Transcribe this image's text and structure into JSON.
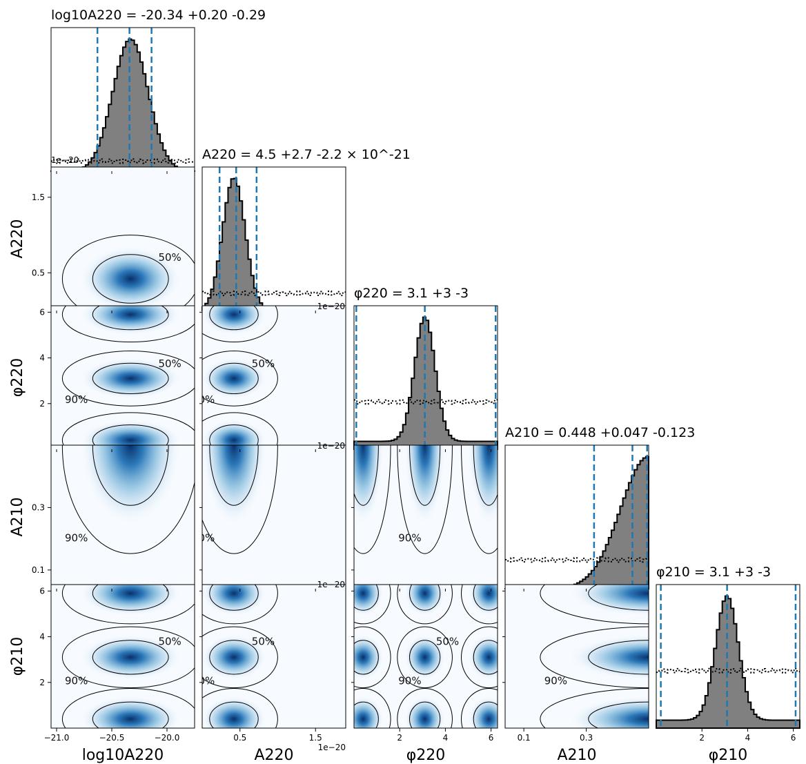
{
  "chart_data": {
    "type": "corner",
    "colors": {
      "hist_fill": "#808080",
      "hist_edge": "#000000",
      "quantile_line": "#1f77b4",
      "density": "Blues",
      "contour": "#000000"
    },
    "params": [
      {
        "key": "log10A220",
        "label_html": "log<tspan font-size='14' dy='5'>10</tspan><tspan font-style='italic' dy='-5'>A</tspan><tspan font-size='14' dy='5'>220</tspan>",
        "label_text": "log10A220",
        "title": {
          "text": "log10A220 = -20.34 +0.20 -0.29",
          "value": -20.34,
          "plus": 0.2,
          "minus": 0.29
        },
        "range": [
          -21.05,
          -19.75
        ],
        "ticks": [
          -21.0,
          -20.5,
          -20.0
        ],
        "tick_labels": [
          "−21.0",
          "−20.5",
          "−20.0"
        ],
        "offset_text": "",
        "quantiles": [
          -20.63,
          -20.34,
          -20.14
        ],
        "hist_peak": {
          "center": -20.33,
          "sigma": 0.16
        },
        "prior_level": 0.07
      },
      {
        "key": "A220",
        "label_text": "A220",
        "title": {
          "text": "A220 = 4.5 +2.7 -2.2 × 10^-21",
          "value": 4.5,
          "plus": 2.7,
          "minus": 2.2,
          "exponent": -21
        },
        "range": [
          0.0,
          1.9
        ],
        "ticks": [
          0.5,
          1.5
        ],
        "tick_labels": [
          "0.5",
          "1.5"
        ],
        "offset_text": "1e−20",
        "quantiles": [
          0.23,
          0.45,
          0.72
        ],
        "hist_peak": {
          "center": 0.42,
          "sigma": 0.15
        },
        "prior_level": 0.12
      },
      {
        "key": "phi220",
        "label_text": "φ220",
        "title": {
          "text": "φ220 = 3.1 +3 -3",
          "value": 3.1,
          "plus": 3,
          "minus": 3
        },
        "range": [
          0.0,
          6.283
        ],
        "ticks": [
          2,
          4,
          6
        ],
        "tick_labels": [
          "2",
          "4",
          "6"
        ],
        "offset_text": "",
        "quantiles": [
          0.1,
          3.1,
          6.2
        ],
        "hist_peak": {
          "center": 3.1,
          "sigma": 0.45,
          "periodic": true
        },
        "prior_level": 0.33
      },
      {
        "key": "A210",
        "label_text": "A210",
        "title": {
          "text": "A210 = 0.448 +0.047 -0.123",
          "value": 0.448,
          "plus": 0.047,
          "minus": 0.123
        },
        "range": [
          0.04,
          0.5
        ],
        "ticks": [
          0.1,
          0.3
        ],
        "tick_labels": [
          "0.1",
          "0.3"
        ],
        "offset_text": "",
        "quantiles": [
          0.325,
          0.448,
          0.495
        ],
        "hist_peak": {
          "center": 0.5,
          "sigma": 0.09,
          "edge": true
        },
        "prior_level": 0.2
      },
      {
        "key": "phi210",
        "label_text": "φ210",
        "title": {
          "text": "φ210 = 3.1 +3 -3",
          "value": 3.1,
          "plus": 3,
          "minus": 3
        },
        "range": [
          0.0,
          6.283
        ],
        "ticks": [
          2,
          4,
          6
        ],
        "tick_labels": [
          "2",
          "4",
          "6"
        ],
        "offset_text": "",
        "quantiles": [
          0.2,
          3.1,
          6.1
        ],
        "hist_peak": {
          "center": 3.1,
          "sigma": 0.5,
          "periodic": true
        },
        "prior_level": 0.4
      }
    ],
    "offset_labels_visible": [
      {
        "text": "1e−20",
        "where": "log10A220 diagonal bottom-left"
      },
      {
        "text": "1e−20",
        "where": "A220 diagonal bottom-right"
      },
      {
        "text": "1e−20",
        "where": "A220 column under phi220 row"
      },
      {
        "text": "1e−20",
        "where": "A220 column under A210 row"
      },
      {
        "text": "1e−20",
        "where": "A220 x axis"
      }
    ],
    "contour_levels": [
      "50%",
      "90%"
    ],
    "contour_label_text": {
      "level50": "50%",
      "level90": "90%",
      "level90_rotated": "90"
    },
    "grid": false
  }
}
